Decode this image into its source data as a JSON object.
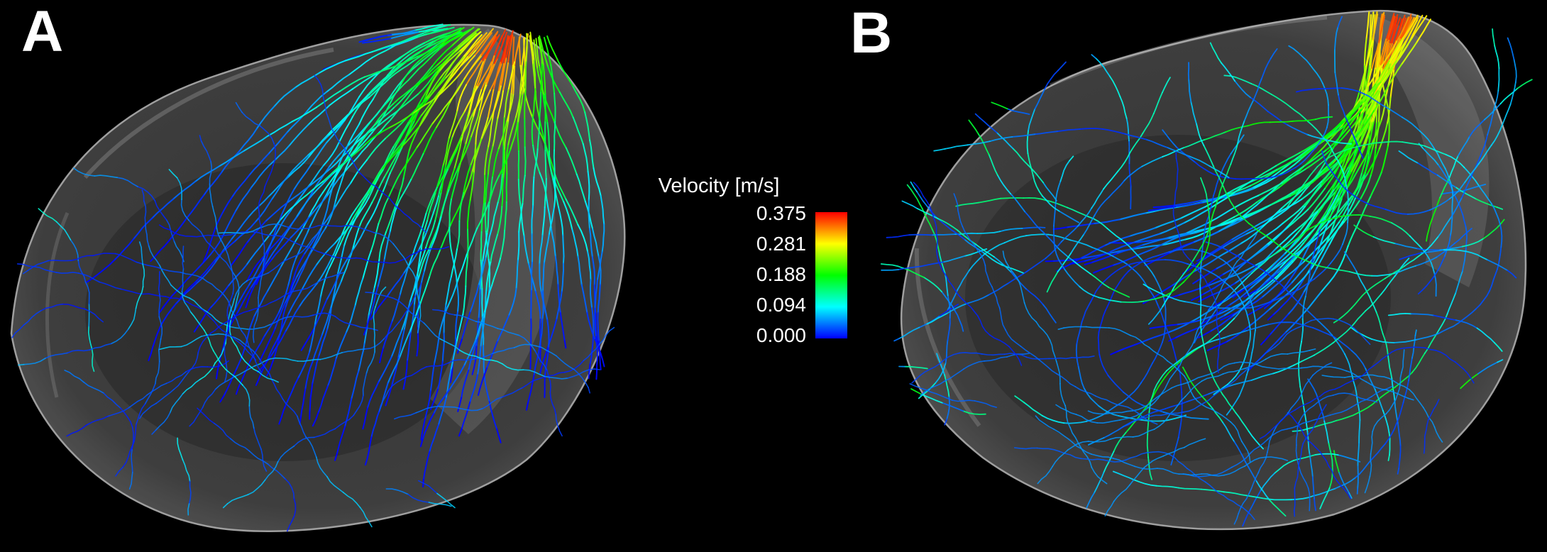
{
  "figure": {
    "background": "#000000",
    "panels": [
      {
        "label": "A",
        "description": "velocity streamlines, organized inflow jet fanning downward"
      },
      {
        "label": "B",
        "description": "velocity streamlines, swirling disorganized flow with top-right jet"
      }
    ],
    "colorbar": {
      "title": "Velocity [m/s]",
      "ticks": [
        "0.375",
        "0.281",
        "0.188",
        "0.094",
        "0.000"
      ],
      "colors_top_to_bottom": [
        "#ff0000",
        "#ffff00",
        "#00ff00",
        "#00ffff",
        "#0000ff"
      ],
      "min": 0.0,
      "max": 0.375,
      "units": "m/s"
    }
  }
}
